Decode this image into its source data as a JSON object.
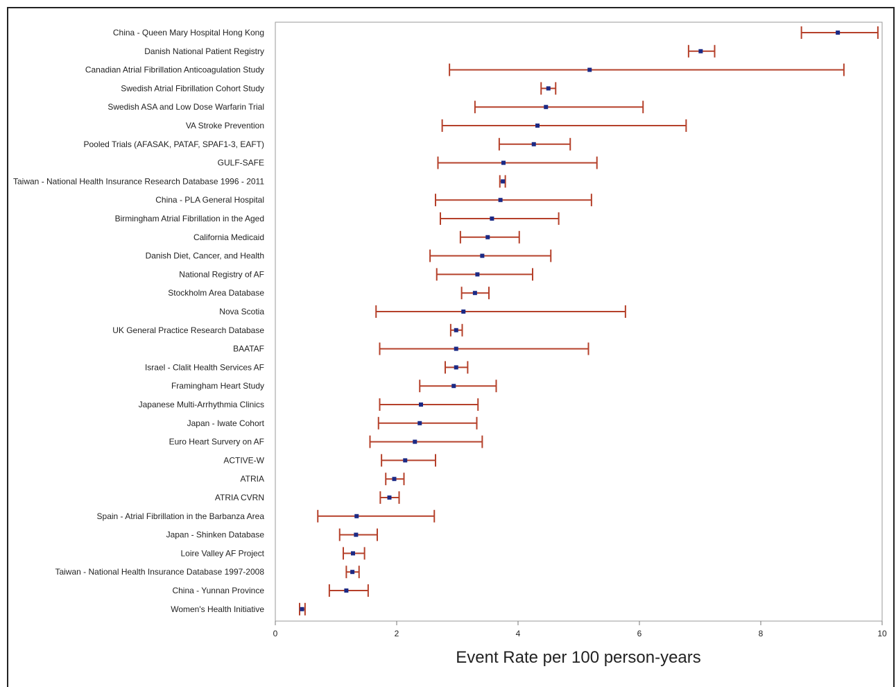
{
  "chart_data": {
    "type": "forest",
    "title": "",
    "xlabel": "Event Rate per 100 person-years",
    "ylabel": "",
    "xlim": [
      0,
      10
    ],
    "xticks": [
      "0",
      "2",
      "4",
      "6",
      "8",
      "10"
    ],
    "grid": false,
    "colors": {
      "interval": "#b5402a",
      "point": "#1c2a85",
      "axis": "#888888"
    },
    "studies": [
      {
        "label": "China - Queen Mary Hospital Hong Kong",
        "estimate": 9.27,
        "lower": 8.67,
        "upper": 9.93
      },
      {
        "label": "Danish National Patient Registry",
        "estimate": 7.01,
        "lower": 6.81,
        "upper": 7.24
      },
      {
        "label": "Canadian Atrial Fibrillation Anticoagulation Study",
        "estimate": 5.18,
        "lower": 2.87,
        "upper": 9.37
      },
      {
        "label": "Swedish Atrial Fibrillation Cohort Study",
        "estimate": 4.5,
        "lower": 4.38,
        "upper": 4.62
      },
      {
        "label": "Swedish ASA and Low Dose Warfarin Trial",
        "estimate": 4.46,
        "lower": 3.29,
        "upper": 6.06
      },
      {
        "label": "VA Stroke Prevention",
        "estimate": 4.32,
        "lower": 2.75,
        "upper": 6.77
      },
      {
        "label": "Pooled Trials (AFASAK, PATAF, SPAF1-3, EAFT)",
        "estimate": 4.26,
        "lower": 3.69,
        "upper": 4.86
      },
      {
        "label": "GULF-SAFE",
        "estimate": 3.76,
        "lower": 2.68,
        "upper": 5.3
      },
      {
        "label": "Taiwan - National Health Insurance Research Database 1996 - 2011",
        "estimate": 3.75,
        "lower": 3.7,
        "upper": 3.79
      },
      {
        "label": "China - PLA General Hospital",
        "estimate": 3.71,
        "lower": 2.64,
        "upper": 5.21
      },
      {
        "label": "Birmingham Atrial Fibrillation in the Aged",
        "estimate": 3.57,
        "lower": 2.72,
        "upper": 4.67
      },
      {
        "label": "California Medicaid",
        "estimate": 3.5,
        "lower": 3.05,
        "upper": 4.02
      },
      {
        "label": "Danish Diet, Cancer, and Health",
        "estimate": 3.41,
        "lower": 2.55,
        "upper": 4.54
      },
      {
        "label": "National Registry of AF",
        "estimate": 3.33,
        "lower": 2.66,
        "upper": 4.24
      },
      {
        "label": "Stockholm Area Database",
        "estimate": 3.29,
        "lower": 3.07,
        "upper": 3.52
      },
      {
        "label": "Nova Scotia",
        "estimate": 3.1,
        "lower": 1.66,
        "upper": 5.77
      },
      {
        "label": "UK General Practice Research Database",
        "estimate": 2.98,
        "lower": 2.89,
        "upper": 3.08
      },
      {
        "label": "BAATAF",
        "estimate": 2.98,
        "lower": 1.72,
        "upper": 5.16
      },
      {
        "label": "Israel - Clalit Health Services AF",
        "estimate": 2.98,
        "lower": 2.8,
        "upper": 3.17
      },
      {
        "label": "Framingham Heart Study",
        "estimate": 2.94,
        "lower": 2.38,
        "upper": 3.64
      },
      {
        "label": "Japanese Multi-Arrhythmia Clinics",
        "estimate": 2.4,
        "lower": 1.72,
        "upper": 3.34
      },
      {
        "label": "Japan - Iwate Cohort",
        "estimate": 2.38,
        "lower": 1.7,
        "upper": 3.32
      },
      {
        "label": "Euro Heart Survery on AF",
        "estimate": 2.3,
        "lower": 1.56,
        "upper": 3.41
      },
      {
        "label": "ACTIVE-W",
        "estimate": 2.14,
        "lower": 1.75,
        "upper": 2.64
      },
      {
        "label": "ATRIA",
        "estimate": 1.96,
        "lower": 1.82,
        "upper": 2.12
      },
      {
        "label": "ATRIA CVRN",
        "estimate": 1.88,
        "lower": 1.73,
        "upper": 2.04
      },
      {
        "label": "Spain - Atrial Fibrillation in the Barbanza Area",
        "estimate": 1.34,
        "lower": 0.7,
        "upper": 2.62
      },
      {
        "label": "Japan - Shinken Database",
        "estimate": 1.33,
        "lower": 1.06,
        "upper": 1.68
      },
      {
        "label": "Loire Valley AF Project",
        "estimate": 1.28,
        "lower": 1.12,
        "upper": 1.47
      },
      {
        "label": "Taiwan - National Health Insurance Database 1997-2008",
        "estimate": 1.27,
        "lower": 1.17,
        "upper": 1.38
      },
      {
        "label": "China - Yunnan Province",
        "estimate": 1.17,
        "lower": 0.89,
        "upper": 1.53
      },
      {
        "label": "Women's Health Initiative",
        "estimate": 0.44,
        "lower": 0.4,
        "upper": 0.49
      }
    ]
  }
}
